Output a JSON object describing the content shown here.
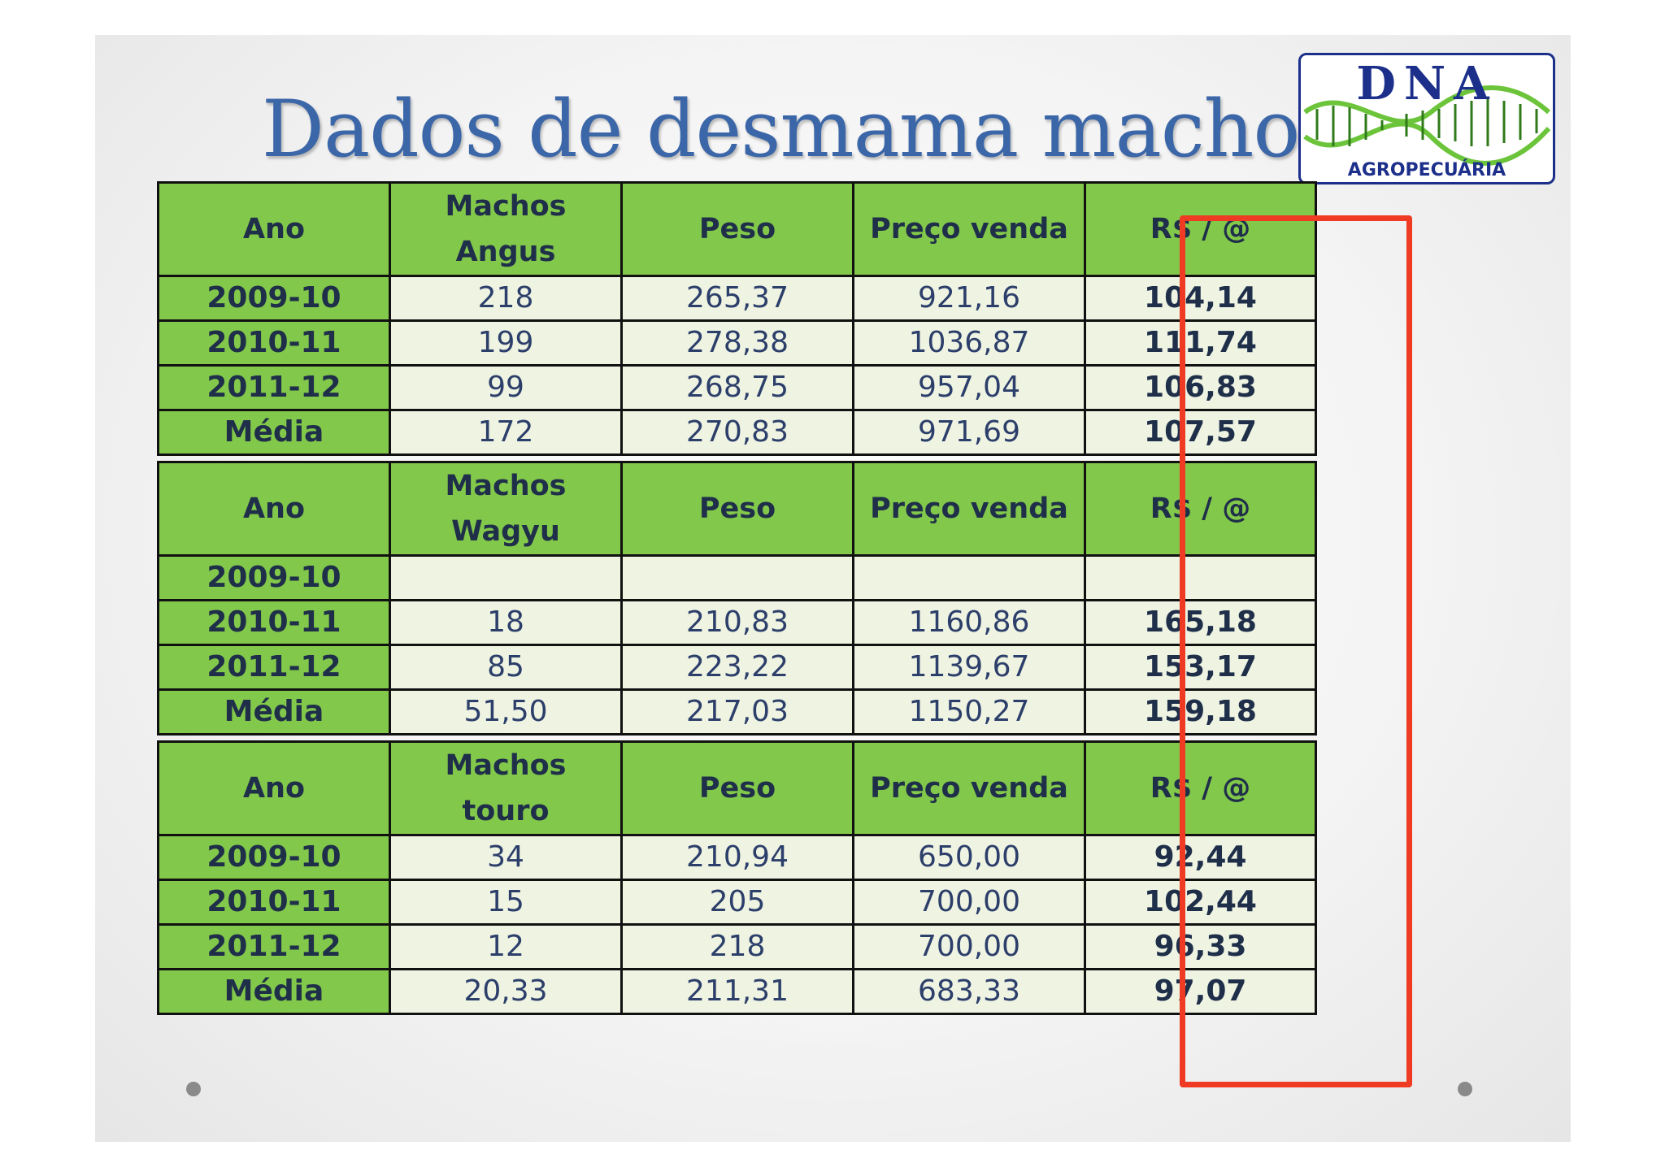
{
  "slide": {
    "title": "Dados de desmama machos",
    "logo": {
      "top_text": "DNA",
      "bottom_text": "AGROPECUÁRIA",
      "colors": {
        "border": "#1c2f8a",
        "helix": "#6cc43a"
      }
    },
    "highlight_color": "#ef3b24",
    "header_color": "#82c84a",
    "tables": [
      {
        "headers": [
          "Ano",
          "Machos Angus",
          "Peso",
          "Preço venda",
          "R$ / @"
        ],
        "rows": [
          [
            "2009-10",
            "218",
            "265,37",
            "921,16",
            "104,14"
          ],
          [
            "2010-11",
            "199",
            "278,38",
            "1036,87",
            "111,74"
          ],
          [
            "2011-12",
            "99",
            "268,75",
            "957,04",
            "106,83"
          ],
          [
            "Média",
            "172",
            "270,83",
            "971,69",
            "107,57"
          ]
        ]
      },
      {
        "headers": [
          "Ano",
          "Machos Wagyu",
          "Peso",
          "Preço venda",
          "R$ / @"
        ],
        "rows": [
          [
            "2009-10",
            "",
            "",
            "",
            ""
          ],
          [
            "2010-11",
            "18",
            "210,83",
            "1160,86",
            "165,18"
          ],
          [
            "2011-12",
            "85",
            "223,22",
            "1139,67",
            "153,17"
          ],
          [
            "Média",
            "51,50",
            "217,03",
            "1150,27",
            "159,18"
          ]
        ]
      },
      {
        "headers": [
          "Ano",
          "Machos touro",
          "Peso",
          "Preço venda",
          "R$ / @"
        ],
        "rows": [
          [
            "2009-10",
            "34",
            "210,94",
            "650,00",
            "92,44"
          ],
          [
            "2010-11",
            "15",
            "205",
            "700,00",
            "102,44"
          ],
          [
            "2011-12",
            "12",
            "218",
            "700,00",
            "96,33"
          ],
          [
            "Média",
            "20,33",
            "211,31",
            "683,33",
            "97,07"
          ]
        ]
      }
    ]
  }
}
